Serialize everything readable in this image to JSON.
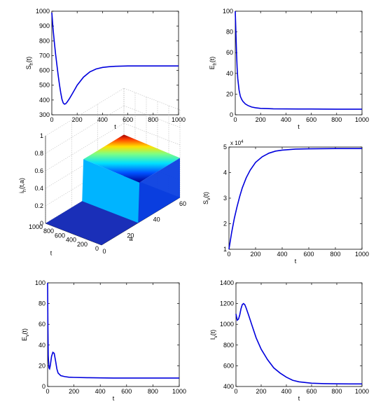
{
  "colors": {
    "curve": "#0000dd",
    "axis": "#000000",
    "grid": "#aaaaaa",
    "background": "#ffffff"
  },
  "chart_data": [
    {
      "id": "sh",
      "type": "line",
      "xlabel": "t",
      "ylabel_main": "S",
      "ylabel_sub": "h",
      "ylabel_tail": "(t)",
      "xlim": [
        0,
        1000
      ],
      "ylim": [
        300,
        1000
      ],
      "xticks": [
        0,
        200,
        400,
        600,
        800,
        1000
      ],
      "yticks": [
        300,
        400,
        500,
        600,
        700,
        800,
        900,
        1000
      ],
      "grid": false,
      "x": [
        0,
        10,
        20,
        30,
        40,
        50,
        60,
        70,
        80,
        90,
        100,
        110,
        120,
        140,
        160,
        180,
        200,
        250,
        300,
        350,
        400,
        450,
        500,
        600,
        700,
        800,
        900,
        1000
      ],
      "y": [
        990,
        880,
        790,
        710,
        640,
        570,
        505,
        450,
        405,
        380,
        372,
        375,
        385,
        410,
        440,
        470,
        500,
        555,
        590,
        610,
        620,
        625,
        628,
        630,
        630,
        630,
        630,
        630
      ]
    },
    {
      "id": "eh",
      "type": "line",
      "xlabel": "t",
      "ylabel_main": "E",
      "ylabel_sub": "h",
      "ylabel_tail": "(t)",
      "xlim": [
        0,
        1000
      ],
      "ylim": [
        0,
        100
      ],
      "xticks": [
        0,
        200,
        400,
        600,
        800,
        1000
      ],
      "yticks": [
        0,
        20,
        40,
        60,
        80,
        100
      ],
      "grid": false,
      "x": [
        0,
        5,
        10,
        15,
        20,
        30,
        40,
        50,
        60,
        80,
        100,
        130,
        160,
        200,
        250,
        300,
        400,
        500,
        600,
        800,
        1000
      ],
      "y": [
        100,
        80,
        60,
        45,
        35,
        24,
        18,
        15,
        13,
        10.5,
        9,
        7.5,
        6.8,
        6.2,
        6,
        5.8,
        5.7,
        5.6,
        5.6,
        5.5,
        5.5
      ]
    },
    {
      "id": "ih",
      "type": "surface",
      "zlabel_main": "i",
      "zlabel_sub": "h",
      "zlabel_tail": "(t,a)",
      "xlabel": "a",
      "ylabel": "t",
      "zticks": [
        0,
        0.2,
        0.4,
        0.6,
        0.8,
        1
      ],
      "aticks": [
        0,
        20,
        40,
        60
      ],
      "tticks": [
        0,
        200,
        400,
        600,
        800,
        1000
      ],
      "zlim": [
        0,
        1
      ],
      "alim": [
        0,
        60
      ],
      "tlim": [
        0,
        1000
      ],
      "grid": true,
      "ridge_peak": 0.47
    },
    {
      "id": "sv",
      "type": "line",
      "xlabel": "t",
      "ylabel_main": "S",
      "ylabel_sub": "v",
      "ylabel_tail": "(t)",
      "multiplier": "x 10",
      "multiplier_exp": "4",
      "xlim": [
        0,
        1000
      ],
      "ylim": [
        1,
        5
      ],
      "xticks": [
        0,
        200,
        400,
        600,
        800,
        1000
      ],
      "yticks": [
        1,
        2,
        3,
        4,
        5
      ],
      "grid": false,
      "x": [
        0,
        20,
        40,
        60,
        80,
        100,
        130,
        160,
        200,
        250,
        300,
        350,
        400,
        500,
        600,
        800,
        1000
      ],
      "y": [
        1,
        1.65,
        2.2,
        2.65,
        3.05,
        3.4,
        3.8,
        4.1,
        4.4,
        4.62,
        4.76,
        4.84,
        4.88,
        4.92,
        4.93,
        4.94,
        4.94
      ]
    },
    {
      "id": "ev",
      "type": "line",
      "xlabel": "t",
      "ylabel_main": "E",
      "ylabel_sub": "v",
      "ylabel_tail": "(t)",
      "xlim": [
        0,
        1000
      ],
      "ylim": [
        0,
        100
      ],
      "xticks": [
        0,
        200,
        400,
        600,
        800,
        1000
      ],
      "yticks": [
        0,
        20,
        40,
        60,
        80,
        100
      ],
      "grid": false,
      "x": [
        0,
        2,
        5,
        10,
        15,
        20,
        30,
        40,
        50,
        60,
        70,
        80,
        100,
        130,
        160,
        200,
        300,
        400,
        500,
        600,
        800,
        1000
      ],
      "y": [
        100,
        60,
        30,
        18,
        17,
        20,
        29,
        33,
        32,
        25,
        17,
        13,
        10.5,
        9.5,
        9,
        8.8,
        8.5,
        8.3,
        8.2,
        8.2,
        8.2,
        8.2
      ]
    },
    {
      "id": "iv",
      "type": "line",
      "xlabel": "t",
      "ylabel_main": "I",
      "ylabel_sub": "v",
      "ylabel_tail": "(t)",
      "xlim": [
        0,
        1000
      ],
      "ylim": [
        400,
        1400
      ],
      "xticks": [
        0,
        200,
        400,
        600,
        800,
        1000
      ],
      "yticks": [
        400,
        600,
        800,
        1000,
        1200,
        1400
      ],
      "grid": false,
      "x": [
        0,
        10,
        20,
        30,
        40,
        50,
        60,
        70,
        80,
        100,
        130,
        160,
        200,
        250,
        300,
        350,
        400,
        450,
        500,
        600,
        700,
        800,
        900,
        1000
      ],
      "y": [
        1100,
        1040,
        1050,
        1090,
        1150,
        1190,
        1200,
        1190,
        1160,
        1090,
        980,
        870,
        760,
        660,
        580,
        530,
        490,
        460,
        445,
        432,
        428,
        426,
        425,
        425
      ]
    }
  ]
}
